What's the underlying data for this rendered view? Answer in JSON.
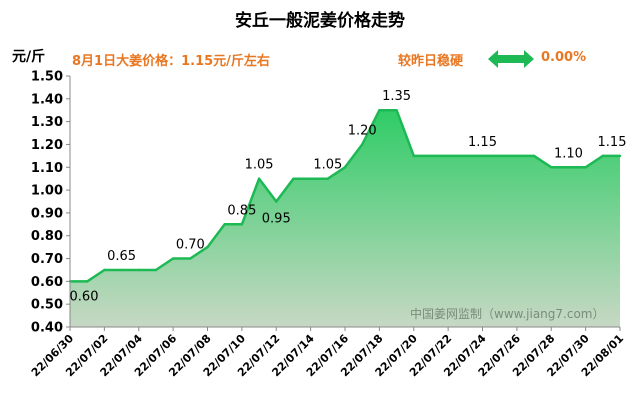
{
  "title": "安丘一般泥姜价格走势",
  "info": {
    "price_note": "8月1日大姜价格：1.15元/斤左右",
    "change_note": "较昨日稳硬",
    "change_value": "0.00%",
    "arrow_icon": "double-arrow-icon"
  },
  "watermark": "中国姜网监制（www.jiang7.com）",
  "colors": {
    "line": "#1db954",
    "fill_top": "#2fcc66",
    "fill_bottom": "#c7d8c4",
    "accent_text": "#e87722"
  },
  "chart_data": {
    "type": "area",
    "ylabel": "元/斤",
    "xlabel": "",
    "ylim": [
      0.4,
      1.5
    ],
    "yticks": [
      "0.40",
      "0.50",
      "0.60",
      "0.70",
      "0.80",
      "0.90",
      "1.00",
      "1.10",
      "1.20",
      "1.30",
      "1.40",
      "1.50"
    ],
    "x": [
      "22/06/30",
      "22/07/01",
      "22/07/02",
      "22/07/03",
      "22/07/04",
      "22/07/05",
      "22/07/06",
      "22/07/07",
      "22/07/08",
      "22/07/09",
      "22/07/10",
      "22/07/11",
      "22/07/12",
      "22/07/13",
      "22/07/14",
      "22/07/15",
      "22/07/16",
      "22/07/17",
      "22/07/18",
      "22/07/19",
      "22/07/20",
      "22/07/21",
      "22/07/22",
      "22/07/23",
      "22/07/24",
      "22/07/25",
      "22/07/26",
      "22/07/27",
      "22/07/28",
      "22/07/29",
      "22/07/30",
      "22/07/31",
      "22/08/01"
    ],
    "xtick_labels": [
      "22/06/30",
      "22/07/02",
      "22/07/04",
      "22/07/06",
      "22/07/08",
      "22/07/10",
      "22/07/12",
      "22/07/14",
      "22/07/16",
      "22/07/18",
      "22/07/20",
      "22/07/22",
      "22/07/24",
      "22/07/26",
      "22/07/28",
      "22/07/30",
      "22/08/01"
    ],
    "values": [
      0.6,
      0.6,
      0.65,
      0.65,
      0.65,
      0.65,
      0.7,
      0.7,
      0.75,
      0.85,
      0.85,
      1.05,
      0.95,
      1.05,
      1.05,
      1.05,
      1.1,
      1.2,
      1.35,
      1.35,
      1.15,
      1.15,
      1.15,
      1.15,
      1.15,
      1.15,
      1.15,
      1.15,
      1.1,
      1.1,
      1.1,
      1.15,
      1.15
    ],
    "data_labels": [
      {
        "index": 0,
        "text": "0.60"
      },
      {
        "index": 3,
        "text": "0.65"
      },
      {
        "index": 7,
        "text": "0.70"
      },
      {
        "index": 10,
        "text": "0.85"
      },
      {
        "index": 11,
        "text": "1.05"
      },
      {
        "index": 12,
        "text": "0.95"
      },
      {
        "index": 15,
        "text": "1.05"
      },
      {
        "index": 17,
        "text": "1.20"
      },
      {
        "index": 19,
        "text": "1.35"
      },
      {
        "index": 24,
        "text": "1.15"
      },
      {
        "index": 29,
        "text": "1.10"
      },
      {
        "index": 32,
        "text": "1.15"
      }
    ],
    "grid": false,
    "legend": "none"
  }
}
